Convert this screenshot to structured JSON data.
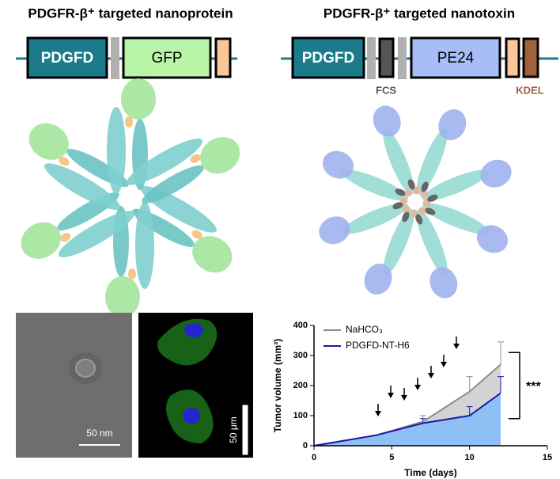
{
  "header": {
    "left_title": "PDGFR-β⁺ targeted nanoprotein",
    "right_title": "PDGFR-β⁺ targeted nanotoxin"
  },
  "constructs": {
    "left": {
      "domains": [
        "PDGFD",
        "GFP"
      ]
    },
    "right": {
      "domains": [
        "PDGFD",
        "PE24"
      ],
      "labels": [
        "FCS",
        "KDEL"
      ]
    }
  },
  "micrographs": {
    "sem_scale": "50 nm",
    "confocal_scale": "50 μm"
  },
  "chart_data": {
    "type": "line",
    "xlabel": "Time (days)",
    "ylabel": "Tumor volume (mm³)",
    "x": [
      0,
      4,
      7,
      10,
      12
    ],
    "xlim": [
      0,
      15
    ],
    "xticks": [
      0,
      5,
      10,
      15
    ],
    "ylim": [
      0,
      400
    ],
    "yticks": [
      0,
      100,
      200,
      300,
      400
    ],
    "legend": "upper left",
    "annotation": "***",
    "series": [
      {
        "name": "NaHCO₃",
        "color": "#8c8c8c",
        "fill": "#d3d3d3",
        "values": [
          0,
          35,
          80,
          180,
          270
        ],
        "errors": [
          null,
          null,
          20,
          50,
          75
        ]
      },
      {
        "name": "PDGFD-NT-H6",
        "color": "#1a1aa6",
        "fill": "#8fc0f5",
        "values": [
          0,
          35,
          75,
          100,
          175
        ],
        "errors": [
          null,
          null,
          15,
          30,
          55
        ]
      }
    ]
  }
}
